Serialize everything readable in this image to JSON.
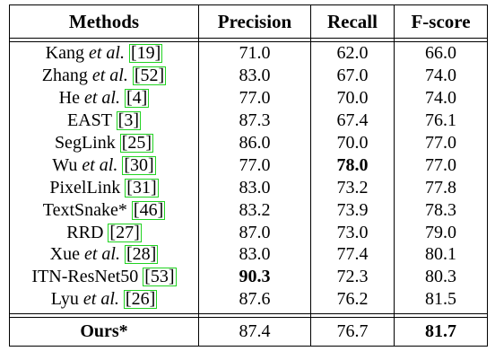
{
  "table": {
    "headers": [
      "Methods",
      "Precision",
      "Recall",
      "F-score"
    ],
    "rows": [
      {
        "name": "Kang",
        "etal": "et al.",
        "cite": "19",
        "precision": "71.0",
        "recall": "62.0",
        "fscore": "66.0",
        "bold": []
      },
      {
        "name": "Zhang",
        "etal": "et al.",
        "cite": "52",
        "precision": "83.0",
        "recall": "67.0",
        "fscore": "74.0",
        "bold": []
      },
      {
        "name": "He",
        "etal": "et al.",
        "cite": "4",
        "precision": "77.0",
        "recall": "70.0",
        "fscore": "74.0",
        "bold": []
      },
      {
        "name": "EAST",
        "etal": "",
        "cite": "3",
        "precision": "87.3",
        "recall": "67.4",
        "fscore": "76.1",
        "bold": []
      },
      {
        "name": "SegLink",
        "etal": "",
        "cite": "25",
        "precision": "86.0",
        "recall": "70.0",
        "fscore": "77.0",
        "bold": []
      },
      {
        "name": "Wu",
        "etal": "et al.",
        "cite": "30",
        "precision": "77.0",
        "recall": "78.0",
        "fscore": "77.0",
        "bold": [
          "recall"
        ]
      },
      {
        "name": "PixelLink",
        "etal": "",
        "cite": "31",
        "precision": "83.0",
        "recall": "73.2",
        "fscore": "77.8",
        "bold": []
      },
      {
        "name": "TextSnake*",
        "etal": "",
        "cite": "46",
        "precision": "83.2",
        "recall": "73.9",
        "fscore": "78.3",
        "bold": []
      },
      {
        "name": "RRD",
        "etal": "",
        "cite": "27",
        "precision": "87.0",
        "recall": "73.0",
        "fscore": "79.0",
        "bold": []
      },
      {
        "name": "Xue",
        "etal": "et al.",
        "cite": "28",
        "precision": "83.0",
        "recall": "77.4",
        "fscore": "80.1",
        "bold": []
      },
      {
        "name": "ITN-ResNet50",
        "etal": "",
        "cite": "53",
        "precision": "90.3",
        "recall": "72.3",
        "fscore": "80.3",
        "bold": [
          "precision"
        ]
      },
      {
        "name": "Lyu",
        "etal": "et al.",
        "cite": "26",
        "precision": "87.6",
        "recall": "76.2",
        "fscore": "81.5",
        "bold": []
      }
    ],
    "ours": {
      "name": "Ours*",
      "precision": "87.4",
      "recall": "76.7",
      "fscore": "81.7",
      "bold": [
        "fscore"
      ]
    }
  }
}
